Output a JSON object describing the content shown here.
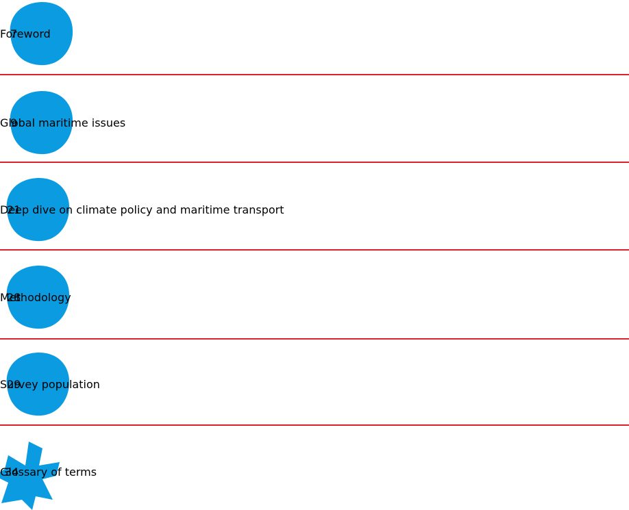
{
  "toc": {
    "entries": [
      {
        "page": "7",
        "title": "Foreword"
      },
      {
        "page": "9",
        "title": "Global maritime issues"
      },
      {
        "page": "21",
        "title": "Deep dive on climate policy and maritime transport"
      },
      {
        "page": "28",
        "title": "Methodology"
      },
      {
        "page": "29",
        "title": "Survey population"
      },
      {
        "page": "34",
        "title": "Glossary of terms"
      }
    ]
  }
}
